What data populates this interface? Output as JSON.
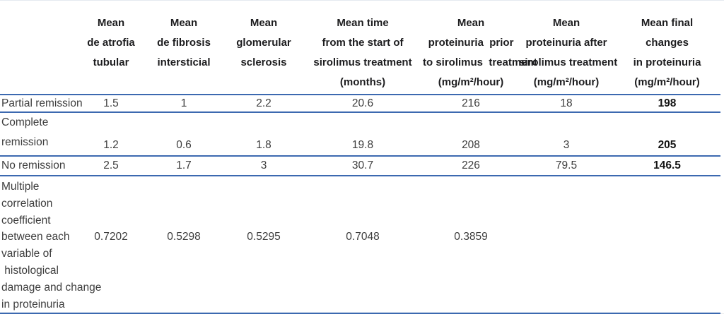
{
  "table": {
    "columns": [
      {
        "label": ""
      },
      {
        "label": "Mean\nde atrofia\ntubular"
      },
      {
        "label": "Mean\nde fibrosis\nintersticial"
      },
      {
        "label": "Mean\nglomerular\nsclerosis"
      },
      {
        "label": "Mean time\nfrom the start of\nsirolimus treatment\n(months)"
      },
      {
        "label": "Mean\nproteinuria  prior\nto sirolimus  treatment\n(mg/m²/hour)"
      },
      {
        "label": "Mean\nproteinuria after\nsirolimus treatment\n(mg/m²/hour)"
      },
      {
        "label": "Mean final\nchanges\nin proteinuria\n(mg/m²/hour)"
      }
    ],
    "rows": [
      {
        "label": "Partial remission",
        "values": [
          "1.5",
          "1",
          "2.2",
          "20.6",
          "216",
          "18",
          "198"
        ]
      },
      {
        "label": "Complete\nremission",
        "values": [
          "1.2",
          "0.6",
          "1.8",
          "19.8",
          "208",
          "3",
          "205"
        ]
      },
      {
        "label": "No remission",
        "values": [
          "2.5",
          "1.7",
          "3",
          "30.7",
          "226",
          "79.5",
          "146.5"
        ]
      },
      {
        "label": "Multiple\ncorrelation\ncoefficient\nbetween each\nvariable of\n histological\ndamage and change\nin proteinuria",
        "values": [
          "0.7202",
          "0.5298",
          "0.5295",
          "0.7048",
          "0.3859",
          "",
          ""
        ]
      }
    ]
  },
  "colors": {
    "rule_blue": "#3c69b0",
    "header_text": "#1d1d1f",
    "body_text": "#3d3d3d"
  }
}
